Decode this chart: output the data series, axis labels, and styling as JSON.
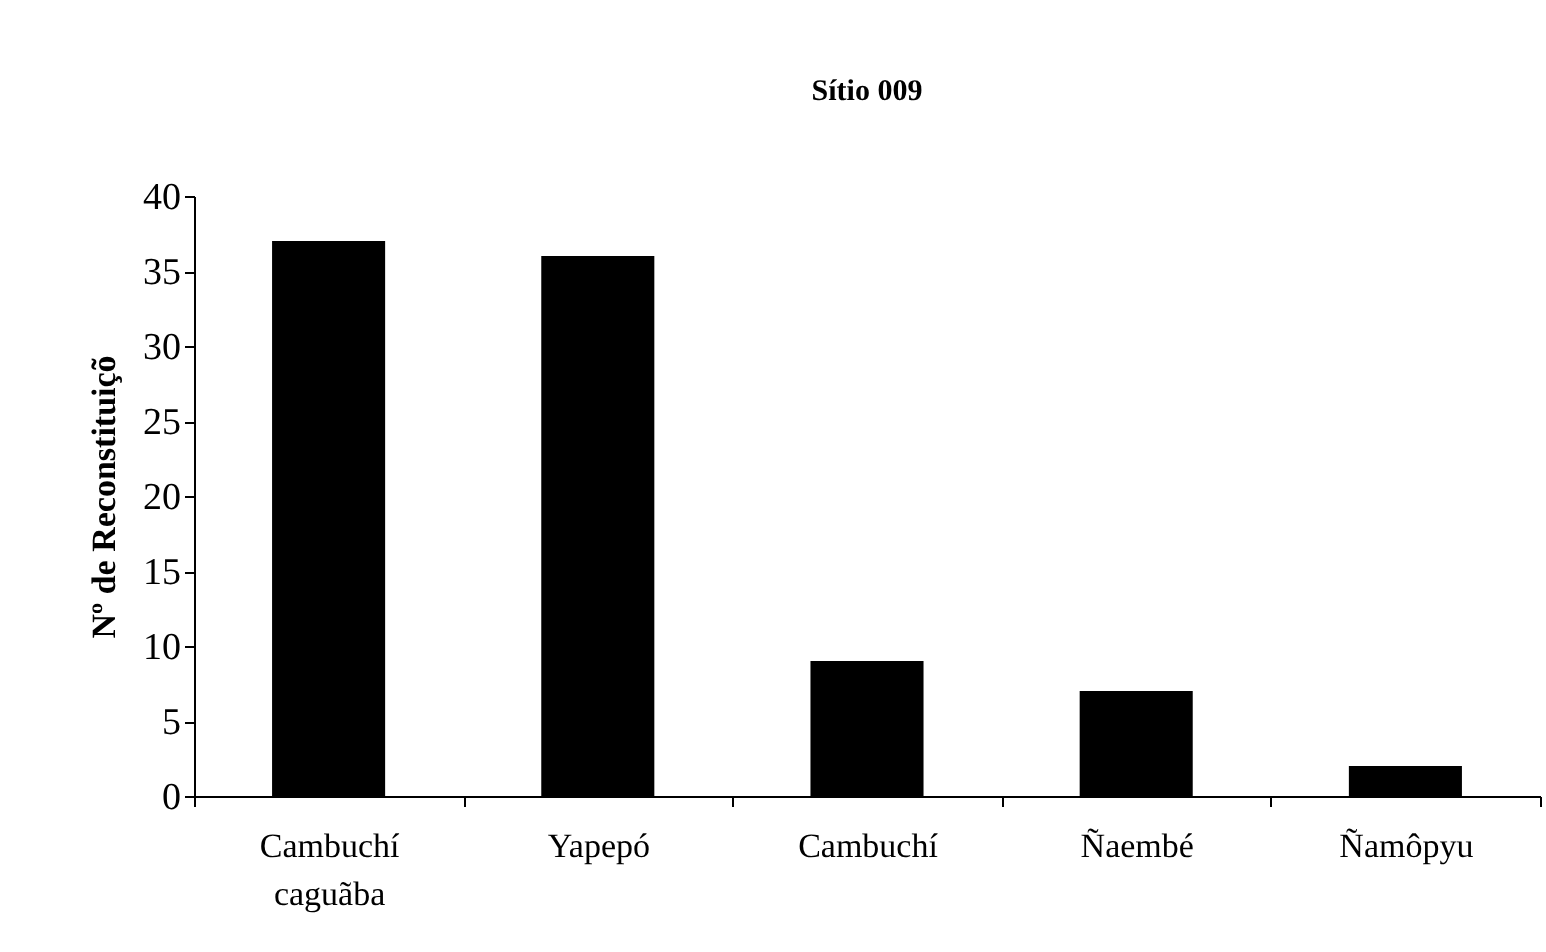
{
  "chart_data": {
    "type": "bar",
    "title": "Sítio 009",
    "ylabel": "Nº de Reconstituiçõ",
    "categories": [
      "Cambuchí caguãba",
      "Yapepó",
      "Cambuchí",
      "Ñaembé",
      "Ñamôpyu"
    ],
    "values": [
      37,
      36,
      9,
      7,
      2
    ],
    "color": "#000000",
    "ylim": [
      0,
      40
    ],
    "yticks": [
      0,
      5,
      10,
      15,
      20,
      25,
      30,
      35,
      40
    ],
    "grid": false
  }
}
